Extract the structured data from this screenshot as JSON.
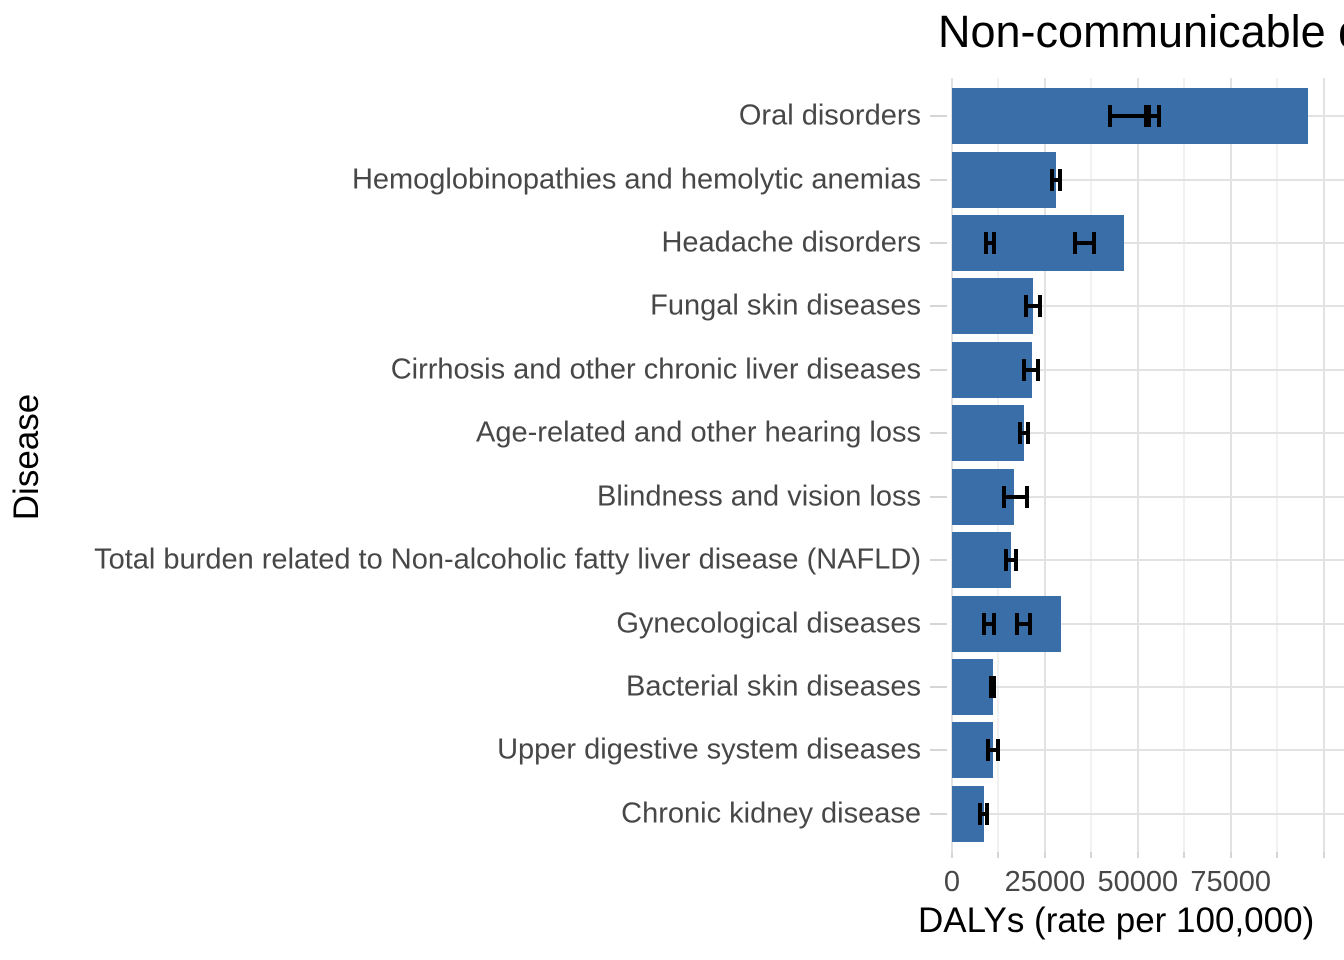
{
  "chart_data": {
    "type": "bar",
    "orientation": "horizontal",
    "title": "Non-communicable diseases",
    "xlabel": "DALYs (rate per 100,000)",
    "ylabel": "Disease",
    "x_ticks": [
      {
        "label": "0",
        "value": 0
      },
      {
        "label": "25000",
        "value": 25000
      },
      {
        "label": "50000",
        "value": 50000
      },
      {
        "label": "75000",
        "value": 75000
      }
    ],
    "x_minor_step": 12500,
    "xlim": [
      0,
      105500
    ],
    "grid": "on",
    "legend": "none",
    "bar_color": "#3a6ea8",
    "errorbar_color": "#000000",
    "categories": [
      "Oral disorders",
      "Hemoglobinopathies and hemolytic anemias",
      "Headache disorders",
      "Fungal skin diseases",
      "Cirrhosis and other chronic liver diseases",
      "Age-related and other hearing loss",
      "Blindness and vision loss",
      "Total burden related to Non-alcoholic fatty liver disease (NAFLD)",
      "Gynecological diseases",
      "Bacterial skin diseases",
      "Upper digestive system diseases",
      "Chronic kidney disease"
    ],
    "values": [
      95800,
      27900,
      46400,
      21700,
      21600,
      19500,
      16700,
      16000,
      29300,
      11100,
      11000,
      8500
    ],
    "error_bars": [
      [
        [
          42500,
          53000
        ],
        [
          52300,
          55600
        ]
      ],
      [
        [
          27000,
          29100
        ]
      ],
      [
        [
          9200,
          11300
        ],
        [
          33200,
          38300
        ]
      ],
      [
        [
          19800,
          23700
        ]
      ],
      [
        [
          19400,
          23200
        ]
      ],
      [
        [
          18200,
          20500
        ]
      ],
      [
        [
          14000,
          20300
        ]
      ],
      [
        [
          14600,
          17100
        ]
      ],
      [
        [
          8500,
          11200
        ],
        [
          17400,
          20900
        ]
      ],
      [
        [
          10500,
          11300
        ]
      ],
      [
        [
          9700,
          12400
        ]
      ],
      [
        [
          7600,
          9300
        ]
      ]
    ]
  }
}
